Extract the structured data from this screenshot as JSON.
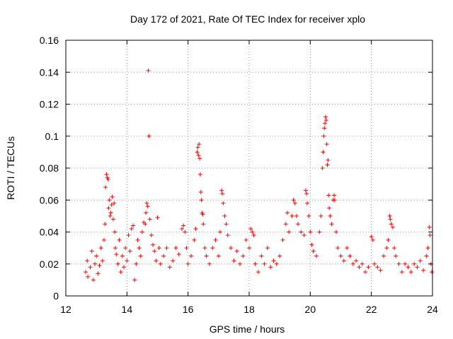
{
  "chart_data": {
    "type": "scatter",
    "title": "Day 172 of 2021, Rate Of TEC Index for receiver xplo",
    "xlabel": "GPS time / hours",
    "ylabel": "ROTI / TECUs",
    "xlim": [
      12,
      24
    ],
    "ylim": [
      0,
      0.16
    ],
    "xticks": [
      12,
      14,
      16,
      18,
      20,
      22,
      24
    ],
    "xtick_labels": [
      "12",
      "14",
      "16",
      "18",
      "20",
      "22",
      "24"
    ],
    "yticks": [
      0,
      0.02,
      0.04,
      0.06,
      0.08,
      0.1,
      0.12,
      0.14,
      0.16
    ],
    "ytick_labels": [
      "0",
      "0.02",
      "0.04",
      "0.06",
      "0.08",
      "0.1",
      "0.12",
      "0.14",
      "0.16"
    ],
    "grid": true,
    "marker": "+",
    "color": "#ff0000",
    "series": [
      {
        "name": "ROTI",
        "points": [
          [
            12.65,
            0.015
          ],
          [
            12.7,
            0.022
          ],
          [
            12.72,
            0.012
          ],
          [
            12.8,
            0.018
          ],
          [
            12.85,
            0.028
          ],
          [
            12.9,
            0.01
          ],
          [
            12.95,
            0.02
          ],
          [
            13.0,
            0.025
          ],
          [
            13.05,
            0.014
          ],
          [
            13.1,
            0.019
          ],
          [
            13.15,
            0.03
          ],
          [
            13.2,
            0.022
          ],
          [
            13.25,
            0.035
          ],
          [
            13.28,
            0.045
          ],
          [
            13.3,
            0.068
          ],
          [
            13.33,
            0.076
          ],
          [
            13.36,
            0.074
          ],
          [
            13.38,
            0.073
          ],
          [
            13.4,
            0.055
          ],
          [
            13.42,
            0.06
          ],
          [
            13.45,
            0.05
          ],
          [
            13.47,
            0.052
          ],
          [
            13.5,
            0.057
          ],
          [
            13.52,
            0.062
          ],
          [
            13.55,
            0.048
          ],
          [
            13.58,
            0.058
          ],
          [
            13.6,
            0.04
          ],
          [
            13.62,
            0.03
          ],
          [
            13.65,
            0.026
          ],
          [
            13.7,
            0.02
          ],
          [
            13.75,
            0.035
          ],
          [
            13.8,
            0.015
          ],
          [
            13.85,
            0.025
          ],
          [
            13.9,
            0.018
          ],
          [
            13.95,
            0.03
          ],
          [
            14.0,
            0.022
          ],
          [
            14.05,
            0.038
          ],
          [
            14.1,
            0.028
          ],
          [
            14.15,
            0.042
          ],
          [
            14.2,
            0.044
          ],
          [
            14.25,
            0.01
          ],
          [
            14.3,
            0.02
          ],
          [
            14.35,
            0.035
          ],
          [
            14.4,
            0.03
          ],
          [
            14.45,
            0.025
          ],
          [
            14.5,
            0.04
          ],
          [
            14.55,
            0.046
          ],
          [
            14.6,
            0.045
          ],
          [
            14.62,
            0.052
          ],
          [
            14.65,
            0.058
          ],
          [
            14.68,
            0.056
          ],
          [
            14.7,
            0.141
          ],
          [
            14.72,
            0.1
          ],
          [
            14.75,
            0.048
          ],
          [
            14.8,
            0.038
          ],
          [
            14.85,
            0.032
          ],
          [
            14.9,
            0.028
          ],
          [
            14.95,
            0.022
          ],
          [
            15.0,
            0.049
          ],
          [
            15.05,
            0.03
          ],
          [
            15.1,
            0.02
          ],
          [
            15.2,
            0.025
          ],
          [
            15.3,
            0.03
          ],
          [
            15.4,
            0.018
          ],
          [
            15.5,
            0.022
          ],
          [
            15.6,
            0.03
          ],
          [
            15.7,
            0.026
          ],
          [
            15.8,
            0.042
          ],
          [
            15.85,
            0.044
          ],
          [
            15.9,
            0.04
          ],
          [
            15.95,
            0.03
          ],
          [
            16.0,
            0.02
          ],
          [
            16.1,
            0.025
          ],
          [
            16.2,
            0.035
          ],
          [
            16.25,
            0.042
          ],
          [
            16.3,
            0.09
          ],
          [
            16.32,
            0.093
          ],
          [
            16.34,
            0.088
          ],
          [
            16.36,
            0.095
          ],
          [
            16.38,
            0.086
          ],
          [
            16.4,
            0.076
          ],
          [
            16.42,
            0.065
          ],
          [
            16.44,
            0.06
          ],
          [
            16.46,
            0.052
          ],
          [
            16.48,
            0.051
          ],
          [
            16.5,
            0.045
          ],
          [
            16.55,
            0.03
          ],
          [
            16.6,
            0.025
          ],
          [
            16.7,
            0.02
          ],
          [
            16.8,
            0.03
          ],
          [
            16.9,
            0.035
          ],
          [
            17.0,
            0.025
          ],
          [
            17.05,
            0.04
          ],
          [
            17.1,
            0.066
          ],
          [
            17.12,
            0.064
          ],
          [
            17.15,
            0.058
          ],
          [
            17.2,
            0.05
          ],
          [
            17.25,
            0.045
          ],
          [
            17.3,
            0.038
          ],
          [
            17.4,
            0.03
          ],
          [
            17.5,
            0.022
          ],
          [
            17.6,
            0.028
          ],
          [
            17.7,
            0.02
          ],
          [
            17.8,
            0.025
          ],
          [
            17.9,
            0.035
          ],
          [
            18.0,
            0.03
          ],
          [
            18.05,
            0.042
          ],
          [
            18.1,
            0.04
          ],
          [
            18.15,
            0.038
          ],
          [
            18.2,
            0.02
          ],
          [
            18.3,
            0.015
          ],
          [
            18.4,
            0.025
          ],
          [
            18.5,
            0.02
          ],
          [
            18.6,
            0.03
          ],
          [
            18.7,
            0.018
          ],
          [
            18.8,
            0.022
          ],
          [
            18.9,
            0.02
          ],
          [
            19.0,
            0.025
          ],
          [
            19.1,
            0.035
          ],
          [
            19.2,
            0.045
          ],
          [
            19.25,
            0.052
          ],
          [
            19.3,
            0.04
          ],
          [
            19.4,
            0.05
          ],
          [
            19.45,
            0.06
          ],
          [
            19.5,
            0.058
          ],
          [
            19.55,
            0.05
          ],
          [
            19.6,
            0.045
          ],
          [
            19.7,
            0.04
          ],
          [
            19.8,
            0.038
          ],
          [
            19.85,
            0.066
          ],
          [
            19.88,
            0.064
          ],
          [
            19.9,
            0.058
          ],
          [
            19.95,
            0.05
          ],
          [
            20.0,
            0.04
          ],
          [
            20.05,
            0.032
          ],
          [
            20.1,
            0.028
          ],
          [
            20.2,
            0.025
          ],
          [
            20.3,
            0.04
          ],
          [
            20.35,
            0.05
          ],
          [
            20.4,
            0.08
          ],
          [
            20.42,
            0.09
          ],
          [
            20.44,
            0.1
          ],
          [
            20.46,
            0.105
          ],
          [
            20.48,
            0.108
          ],
          [
            20.5,
            0.112
          ],
          [
            20.52,
            0.11
          ],
          [
            20.54,
            0.095
          ],
          [
            20.56,
            0.082
          ],
          [
            20.58,
            0.085
          ],
          [
            20.6,
            0.063
          ],
          [
            20.62,
            0.055
          ],
          [
            20.65,
            0.05
          ],
          [
            20.7,
            0.045
          ],
          [
            20.75,
            0.06
          ],
          [
            20.78,
            0.063
          ],
          [
            20.8,
            0.06
          ],
          [
            20.85,
            0.04
          ],
          [
            20.9,
            0.03
          ],
          [
            21.0,
            0.025
          ],
          [
            21.1,
            0.022
          ],
          [
            21.2,
            0.03
          ],
          [
            21.3,
            0.025
          ],
          [
            21.4,
            0.02
          ],
          [
            21.5,
            0.022
          ],
          [
            21.6,
            0.018
          ],
          [
            21.7,
            0.02
          ],
          [
            21.8,
            0.015
          ],
          [
            21.9,
            0.018
          ],
          [
            22.0,
            0.037
          ],
          [
            22.05,
            0.035
          ],
          [
            22.1,
            0.02
          ],
          [
            22.2,
            0.018
          ],
          [
            22.3,
            0.016
          ],
          [
            22.4,
            0.025
          ],
          [
            22.5,
            0.03
          ],
          [
            22.55,
            0.035
          ],
          [
            22.6,
            0.05
          ],
          [
            22.62,
            0.048
          ],
          [
            22.65,
            0.045
          ],
          [
            22.7,
            0.043
          ],
          [
            22.75,
            0.03
          ],
          [
            22.8,
            0.025
          ],
          [
            22.9,
            0.02
          ],
          [
            23.0,
            0.015
          ],
          [
            23.1,
            0.02
          ],
          [
            23.2,
            0.018
          ],
          [
            23.3,
            0.015
          ],
          [
            23.4,
            0.02
          ],
          [
            23.5,
            0.018
          ],
          [
            23.6,
            0.022
          ],
          [
            23.7,
            0.016
          ],
          [
            23.8,
            0.025
          ],
          [
            23.85,
            0.03
          ],
          [
            23.9,
            0.043
          ],
          [
            23.92,
            0.038
          ],
          [
            23.95,
            0.02
          ],
          [
            23.98,
            0.015
          ]
        ]
      }
    ]
  }
}
